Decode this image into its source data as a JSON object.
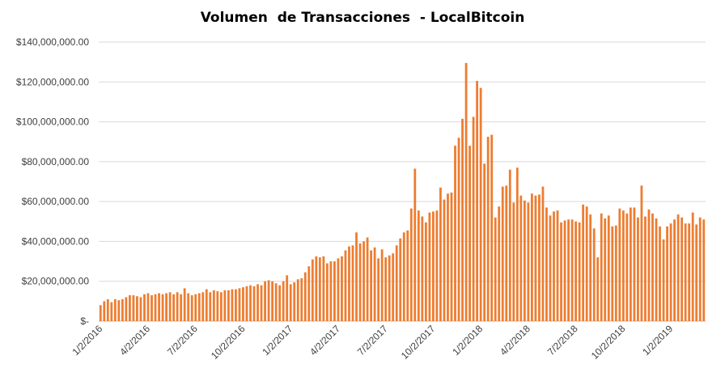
{
  "chart_data": {
    "type": "bar",
    "title": "Volumen  de Transacciones  - LocalBitcoin",
    "xlabel": "",
    "ylabel": "",
    "ylim": [
      0,
      140000000
    ],
    "grid": true,
    "color": "#ed7d31",
    "y_ticks": [
      0,
      20000000,
      40000000,
      60000000,
      80000000,
      100000000,
      120000000,
      140000000
    ],
    "y_tick_labels": [
      "$-",
      "$20,000,000.00",
      "$40,000,000.00",
      "$60,000,000.00",
      "$80,000,000.00",
      "$100,000,000.00",
      "$120,000,000.00",
      "$140,000,000.00"
    ],
    "x_tick_labels": [
      "1/2/2016",
      "4/2/2016",
      "7/2/2016",
      "10/2/2016",
      "1/2/2017",
      "4/2/2017",
      "7/2/2017",
      "10/2/2017",
      "1/2/2018",
      "4/2/2018",
      "7/2/2018",
      "10/2/2018",
      "1/2/2019"
    ],
    "x_tick_positions": [
      0,
      13,
      26,
      39,
      52,
      65,
      78,
      91,
      104,
      117,
      130,
      143,
      156
    ],
    "values": [
      8000000,
      10000000,
      11000000,
      9500000,
      11000000,
      10500000,
      11000000,
      12000000,
      13000000,
      13000000,
      12500000,
      12000000,
      13500000,
      14000000,
      13000000,
      13500000,
      14000000,
      13500000,
      14000000,
      14500000,
      13500000,
      14500000,
      13500000,
      16500000,
      14000000,
      13000000,
      13500000,
      14000000,
      14500000,
      16000000,
      14500000,
      15500000,
      15000000,
      14500000,
      15500000,
      15500000,
      16000000,
      16000000,
      16500000,
      17000000,
      17500000,
      18000000,
      17500000,
      18500000,
      18000000,
      20000000,
      20500000,
      20000000,
      19000000,
      18000000,
      20000000,
      23000000,
      18500000,
      19500000,
      21000000,
      21500000,
      24500000,
      27500000,
      31000000,
      32500000,
      32000000,
      32500000,
      29000000,
      30000000,
      30000000,
      31500000,
      32500000,
      35500000,
      37500000,
      38000000,
      44500000,
      39000000,
      40000000,
      42000000,
      35500000,
      37000000,
      31500000,
      36000000,
      32000000,
      33000000,
      34000000,
      38000000,
      41500000,
      44500000,
      45500000,
      56500000,
      76500000,
      55500000,
      52500000,
      49500000,
      54500000,
      55000000,
      55500000,
      67000000,
      61000000,
      64000000,
      64500000,
      88000000,
      92000000,
      101500000,
      129500000,
      88000000,
      102500000,
      120500000,
      117000000,
      79000000,
      92500000,
      93500000,
      52000000,
      57500000,
      67500000,
      68000000,
      76000000,
      59500000,
      77000000,
      63000000,
      60500000,
      59500000,
      64000000,
      63000000,
      63500000,
      67500000,
      57000000,
      53000000,
      55000000,
      55500000,
      49500000,
      50500000,
      51000000,
      51000000,
      50000000,
      49500000,
      58500000,
      57500000,
      53500000,
      46500000,
      32000000,
      54000000,
      51500000,
      53000000,
      47500000,
      48000000,
      56500000,
      55500000,
      54000000,
      57000000,
      57000000,
      52000000,
      68000000,
      52500000,
      56000000,
      54000000,
      51500000,
      47500000,
      41000000,
      47500000,
      49000000,
      51000000,
      53500000,
      52000000,
      49000000,
      49000000,
      54500000,
      48500000,
      52000000,
      51000000
    ]
  }
}
